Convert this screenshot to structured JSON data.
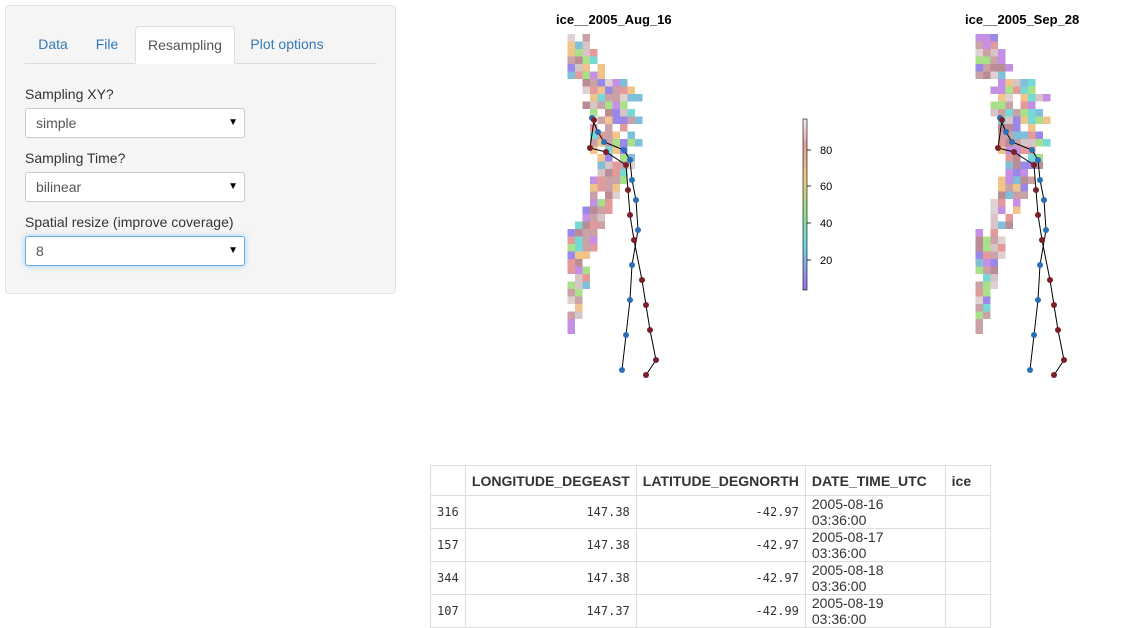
{
  "tabs": [
    {
      "label": "Data",
      "active": false
    },
    {
      "label": "File",
      "active": false
    },
    {
      "label": "Resampling",
      "active": true
    },
    {
      "label": "Plot options",
      "active": false
    }
  ],
  "fields": {
    "sampling_xy": {
      "label": "Sampling XY?",
      "value": "simple"
    },
    "sampling_time": {
      "label": "Sampling Time?",
      "value": "bilinear"
    },
    "spatial_resize": {
      "label": "Spatial resize (improve coverage)",
      "value": "8"
    }
  },
  "plots": {
    "left_title": "ice__2005_Aug_16",
    "right_title": "ice__2005_Sep_28",
    "colorbar_ticks": [
      "80",
      "60",
      "40",
      "20"
    ]
  },
  "table": {
    "columns": [
      "",
      "LONGITUDE_DEGEAST",
      "LATITUDE_DEGNORTH",
      "DATE_TIME_UTC",
      "ice"
    ],
    "rows": [
      [
        "316",
        "147.38",
        "-42.97",
        "2005-08-16 03:36:00",
        ""
      ],
      [
        "157",
        "147.38",
        "-42.97",
        "2005-08-17 03:36:00",
        ""
      ],
      [
        "344",
        "147.38",
        "-42.97",
        "2005-08-18 03:36:00",
        ""
      ],
      [
        "107",
        "147.37",
        "-42.99",
        "2005-08-19 03:36:00",
        ""
      ]
    ]
  }
}
